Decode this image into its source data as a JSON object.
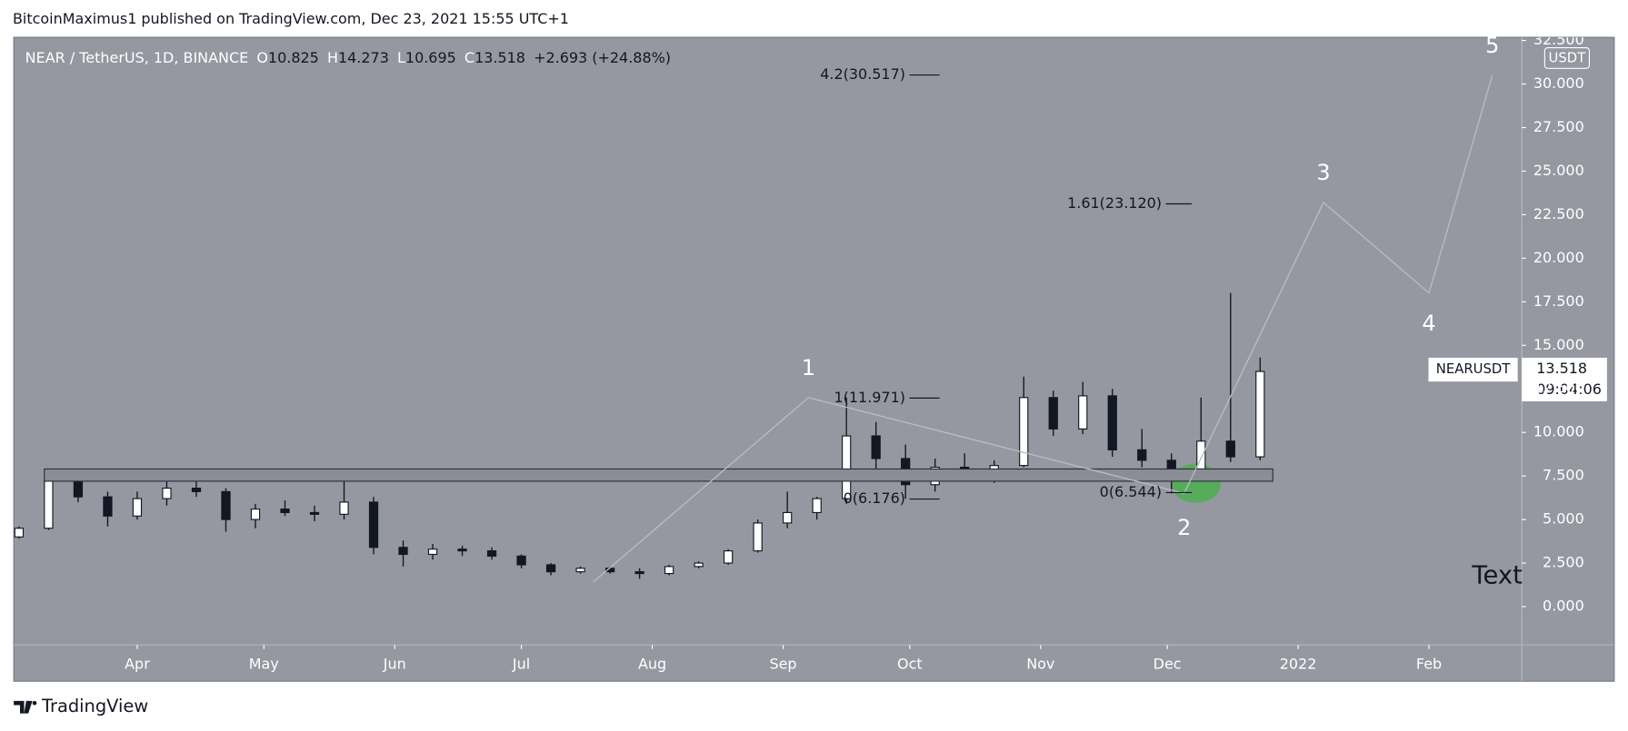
{
  "header": "BitcoinMaximus1 published on TradingView.com, Dec 23, 2021 15:55 UTC+1",
  "footer": "TradingView",
  "chart_data": {
    "type": "candlestick",
    "symbol": "NEAR / TetherUS, 1D, BINANCE",
    "ohlc_legend": [
      {
        "key": "O",
        "value": "10.825"
      },
      {
        "key": "H",
        "value": "14.273"
      },
      {
        "key": "L",
        "value": "10.695"
      },
      {
        "key": "C",
        "value": "13.518"
      }
    ],
    "change": "+2.693 (+24.88%)",
    "currency": "USDT",
    "price_tag": {
      "name": "NEARUSDT",
      "price": "13.518",
      "countdown": "09:04:06"
    },
    "x": [
      3,
      10,
      17,
      24,
      31,
      38,
      45,
      52,
      59,
      66,
      73,
      80,
      87,
      94,
      101,
      108,
      115,
      122,
      129,
      136,
      143,
      150,
      157,
      164,
      171,
      178,
      185,
      192,
      199,
      206,
      213,
      220,
      227,
      234,
      241,
      248,
      255,
      262,
      269,
      276,
      283,
      290,
      297
    ],
    "open": [
      4.0,
      4.5,
      7.2,
      6.3,
      5.2,
      6.2,
      6.8,
      6.6,
      5.0,
      5.6,
      5.4,
      5.3,
      6.0,
      3.4,
      3.0,
      3.3,
      3.2,
      2.9,
      2.4,
      2.0,
      2.2,
      2.0,
      1.9,
      2.3,
      2.5,
      3.2,
      4.8,
      5.4,
      6.2,
      9.8,
      8.5,
      7.0,
      8.0,
      7.6,
      8.1,
      12.0,
      10.2,
      12.1,
      9.0,
      8.4,
      7.9,
      9.5,
      8.6
    ],
    "high": [
      4.6,
      7.7,
      7.6,
      6.6,
      6.6,
      7.5,
      7.4,
      6.8,
      5.9,
      6.1,
      5.8,
      7.4,
      6.3,
      3.8,
      3.6,
      3.5,
      3.4,
      3.0,
      2.5,
      2.3,
      2.3,
      2.2,
      2.4,
      2.6,
      3.3,
      5.0,
      6.6,
      6.3,
      12.0,
      10.6,
      9.3,
      8.5,
      8.8,
      8.4,
      13.2,
      12.4,
      12.9,
      12.5,
      10.2,
      8.8,
      12.0,
      18.0,
      14.3
    ],
    "low": [
      3.9,
      4.4,
      6.0,
      4.6,
      5.0,
      5.8,
      6.3,
      4.3,
      4.5,
      5.2,
      4.9,
      5.0,
      3.0,
      2.3,
      2.7,
      2.9,
      2.7,
      2.2,
      1.8,
      1.9,
      1.9,
      1.6,
      1.8,
      2.2,
      2.4,
      3.1,
      4.5,
      5.0,
      5.9,
      7.8,
      6.2,
      6.6,
      7.2,
      7.1,
      8.0,
      9.8,
      9.9,
      8.6,
      8.0,
      6.5,
      7.4,
      8.3,
      8.4
    ],
    "close": [
      4.5,
      7.2,
      6.3,
      5.2,
      6.2,
      6.8,
      6.6,
      5.0,
      5.6,
      5.4,
      5.3,
      6.0,
      3.4,
      3.0,
      3.3,
      3.2,
      2.9,
      2.4,
      2.0,
      2.2,
      2.0,
      1.9,
      2.3,
      2.5,
      3.2,
      4.8,
      5.4,
      6.2,
      9.8,
      8.5,
      7.0,
      8.0,
      7.6,
      8.1,
      12.0,
      10.2,
      12.1,
      9.0,
      8.4,
      7.9,
      9.5,
      8.6,
      13.5
    ],
    "xlim": [
      2,
      359
    ],
    "xticks": [
      {
        "value": 31,
        "label": "Apr"
      },
      {
        "value": 61,
        "label": "May"
      },
      {
        "value": 92,
        "label": "Jun"
      },
      {
        "value": 122,
        "label": "Jul"
      },
      {
        "value": 153,
        "label": "Aug"
      },
      {
        "value": 184,
        "label": "Sep"
      },
      {
        "value": 214,
        "label": "Oct"
      },
      {
        "value": 245,
        "label": "Nov"
      },
      {
        "value": 275,
        "label": "Dec"
      },
      {
        "value": 306,
        "label": "2022"
      },
      {
        "value": 337,
        "label": "Feb"
      }
    ],
    "ylim": [
      -2.2,
      32.68
    ],
    "yticks": [
      {
        "value": 0,
        "label": "0.000"
      },
      {
        "value": 2.5,
        "label": "2.500"
      },
      {
        "value": 5,
        "label": "5.000"
      },
      {
        "value": 7.5,
        "label": "7.500"
      },
      {
        "value": 10,
        "label": "10.000"
      },
      {
        "value": 12.5,
        "label": "12.500"
      },
      {
        "value": 15,
        "label": "15.000"
      },
      {
        "value": 17.5,
        "label": "17.500"
      },
      {
        "value": 20,
        "label": "20.000"
      },
      {
        "value": 22.5,
        "label": "22.500"
      },
      {
        "value": 25,
        "label": "25.000"
      },
      {
        "value": 27.5,
        "label": "27.500"
      },
      {
        "value": 30,
        "label": "30.000"
      },
      {
        "value": 32.5,
        "label": "32.500"
      }
    ],
    "fib_levels": [
      {
        "label": "4.2(30.517)",
        "value": 30.517
      },
      {
        "label": "1.61(23.120)",
        "value": 23.12
      },
      {
        "label": "1(11.971)",
        "value": 11.971
      },
      {
        "label": "0(6.176)",
        "value": 6.176
      },
      {
        "label": "0(6.544)",
        "value": 6.544
      }
    ],
    "wave": {
      "x": [
        139,
        190,
        279,
        312,
        337,
        352
      ],
      "y": [
        1.4,
        12.0,
        6.5,
        23.2,
        18.0,
        30.5
      ],
      "labels": [
        null,
        "1",
        "2",
        "3",
        "4",
        "5"
      ]
    },
    "zone": {
      "x": [
        9,
        300
      ],
      "y": [
        7.2,
        7.9
      ]
    },
    "note": "Text"
  }
}
